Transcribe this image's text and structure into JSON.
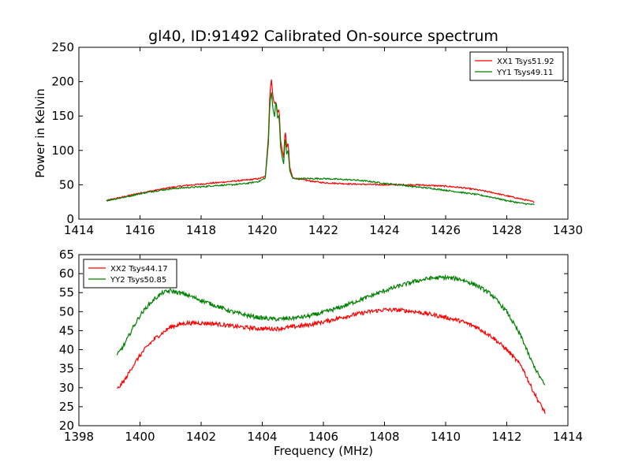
{
  "chart_data": [
    {
      "type": "line",
      "title": "gl40, ID:91492 Calibrated On-source spectrum",
      "xlabel": "",
      "ylabel": "Power in Kelvin",
      "xlim": [
        1414,
        1430
      ],
      "ylim": [
        0,
        250
      ],
      "xticks": [
        "1414",
        "1416",
        "1418",
        "1420",
        "1422",
        "1424",
        "1426",
        "1428",
        "1430"
      ],
      "yticks": [
        "0",
        "50",
        "100",
        "150",
        "200",
        "250"
      ],
      "grid": false,
      "legend_position": "top-right",
      "series": [
        {
          "name": "XX1 Tsys51.92",
          "color": "#ff0000",
          "points": [
            [
              1414.9,
              27
            ],
            [
              1415.5,
              33
            ],
            [
              1416.0,
              38
            ],
            [
              1416.5,
              42
            ],
            [
              1417.0,
              46
            ],
            [
              1417.5,
              49
            ],
            [
              1418.0,
              51
            ],
            [
              1418.5,
              53
            ],
            [
              1419.0,
              55
            ],
            [
              1419.5,
              57
            ],
            [
              1419.9,
              59
            ],
            [
              1420.1,
              62
            ],
            [
              1420.2,
              120
            ],
            [
              1420.25,
              185
            ],
            [
              1420.3,
              203
            ],
            [
              1420.35,
              178
            ],
            [
              1420.4,
              168
            ],
            [
              1420.45,
              170
            ],
            [
              1420.5,
              155
            ],
            [
              1420.55,
              160
            ],
            [
              1420.6,
              115
            ],
            [
              1420.65,
              100
            ],
            [
              1420.7,
              90
            ],
            [
              1420.75,
              130
            ],
            [
              1420.8,
              105
            ],
            [
              1420.85,
              110
            ],
            [
              1420.9,
              75
            ],
            [
              1421.0,
              60
            ],
            [
              1421.5,
              56
            ],
            [
              1422.0,
              53
            ],
            [
              1423.0,
              51
            ],
            [
              1424.0,
              50
            ],
            [
              1425.0,
              50
            ],
            [
              1426.0,
              48
            ],
            [
              1426.5,
              46
            ],
            [
              1427.0,
              43
            ],
            [
              1427.5,
              39
            ],
            [
              1428.0,
              34
            ],
            [
              1428.5,
              29
            ],
            [
              1428.9,
              25
            ]
          ]
        },
        {
          "name": "YY1 Tsys49.11",
          "color": "#008000",
          "points": [
            [
              1414.9,
              27
            ],
            [
              1415.5,
              32
            ],
            [
              1416.0,
              37
            ],
            [
              1416.5,
              41
            ],
            [
              1417.0,
              44
            ],
            [
              1417.5,
              46
            ],
            [
              1418.0,
              47
            ],
            [
              1418.5,
              49
            ],
            [
              1419.0,
              50
            ],
            [
              1419.5,
              52
            ],
            [
              1419.9,
              55
            ],
            [
              1420.1,
              60
            ],
            [
              1420.2,
              110
            ],
            [
              1420.25,
              170
            ],
            [
              1420.3,
              185
            ],
            [
              1420.35,
              160
            ],
            [
              1420.4,
              150
            ],
            [
              1420.45,
              172
            ],
            [
              1420.5,
              148
            ],
            [
              1420.55,
              150
            ],
            [
              1420.6,
              105
            ],
            [
              1420.65,
              90
            ],
            [
              1420.7,
              80
            ],
            [
              1420.75,
              120
            ],
            [
              1420.8,
              95
            ],
            [
              1420.85,
              100
            ],
            [
              1420.9,
              70
            ],
            [
              1421.0,
              59
            ],
            [
              1421.5,
              59
            ],
            [
              1422.0,
              59
            ],
            [
              1422.5,
              58
            ],
            [
              1423.0,
              57
            ],
            [
              1423.5,
              55
            ],
            [
              1424.0,
              52
            ],
            [
              1424.5,
              50
            ],
            [
              1425.0,
              47
            ],
            [
              1425.5,
              45
            ],
            [
              1426.0,
              42
            ],
            [
              1426.5,
              39
            ],
            [
              1427.0,
              36
            ],
            [
              1427.5,
              32
            ],
            [
              1428.0,
              27
            ],
            [
              1428.5,
              23
            ],
            [
              1428.9,
              21
            ]
          ]
        }
      ]
    },
    {
      "type": "line",
      "title": "",
      "xlabel": "Frequency (MHz)",
      "ylabel": "",
      "xlim": [
        1398,
        1414
      ],
      "ylim": [
        20,
        65
      ],
      "xticks": [
        "1398",
        "1400",
        "1402",
        "1404",
        "1406",
        "1408",
        "1410",
        "1412",
        "1414"
      ],
      "yticks": [
        "20",
        "25",
        "30",
        "35",
        "40",
        "45",
        "50",
        "55",
        "60",
        "65"
      ],
      "grid": false,
      "legend_position": "top-left",
      "series": [
        {
          "name": "XX2 Tsys44.17",
          "color": "#ff0000",
          "points": [
            [
              1399.25,
              29.5
            ],
            [
              1399.5,
              32
            ],
            [
              1399.75,
              35.5
            ],
            [
              1400.0,
              38.5
            ],
            [
              1400.25,
              41
            ],
            [
              1400.5,
              43
            ],
            [
              1400.75,
              44.5
            ],
            [
              1401.0,
              46
            ],
            [
              1401.5,
              47
            ],
            [
              1402.0,
              47
            ],
            [
              1402.5,
              46.8
            ],
            [
              1403.0,
              46.2
            ],
            [
              1403.5,
              45.8
            ],
            [
              1404.0,
              45.5
            ],
            [
              1404.5,
              45.5
            ],
            [
              1405.0,
              46
            ],
            [
              1405.5,
              46.5
            ],
            [
              1406.0,
              47.3
            ],
            [
              1406.5,
              48.3
            ],
            [
              1407.0,
              49.2
            ],
            [
              1407.5,
              50
            ],
            [
              1408.0,
              50.5
            ],
            [
              1408.5,
              50.4
            ],
            [
              1409.0,
              50
            ],
            [
              1409.5,
              49.3
            ],
            [
              1410.0,
              48.5
            ],
            [
              1410.5,
              47.5
            ],
            [
              1411.0,
              46
            ],
            [
              1411.5,
              43.5
            ],
            [
              1412.0,
              40
            ],
            [
              1412.5,
              35.5
            ],
            [
              1412.75,
              31
            ],
            [
              1413.0,
              27
            ],
            [
              1413.25,
              23.5
            ]
          ]
        },
        {
          "name": "YY2 Tsys50.85",
          "color": "#008000",
          "points": [
            [
              1399.25,
              38.5
            ],
            [
              1399.5,
              41.5
            ],
            [
              1399.75,
              45.5
            ],
            [
              1400.0,
              49
            ],
            [
              1400.25,
              51.5
            ],
            [
              1400.5,
              53.5
            ],
            [
              1400.75,
              55
            ],
            [
              1401.0,
              55.5
            ],
            [
              1401.5,
              54.5
            ],
            [
              1402.0,
              53
            ],
            [
              1402.5,
              51.5
            ],
            [
              1403.0,
              50
            ],
            [
              1403.5,
              49
            ],
            [
              1404.0,
              48.3
            ],
            [
              1404.5,
              48
            ],
            [
              1405.0,
              48.3
            ],
            [
              1405.5,
              48.8
            ],
            [
              1406.0,
              49.8
            ],
            [
              1406.5,
              51
            ],
            [
              1407.0,
              52.5
            ],
            [
              1407.5,
              54
            ],
            [
              1408.0,
              55.5
            ],
            [
              1408.5,
              56.8
            ],
            [
              1409.0,
              58
            ],
            [
              1409.5,
              58.8
            ],
            [
              1410.0,
              59
            ],
            [
              1410.5,
              58.5
            ],
            [
              1411.0,
              57
            ],
            [
              1411.5,
              54.5
            ],
            [
              1412.0,
              50
            ],
            [
              1412.5,
              43
            ],
            [
              1412.75,
              38
            ],
            [
              1413.0,
              34
            ],
            [
              1413.25,
              30.5
            ]
          ]
        }
      ]
    }
  ]
}
